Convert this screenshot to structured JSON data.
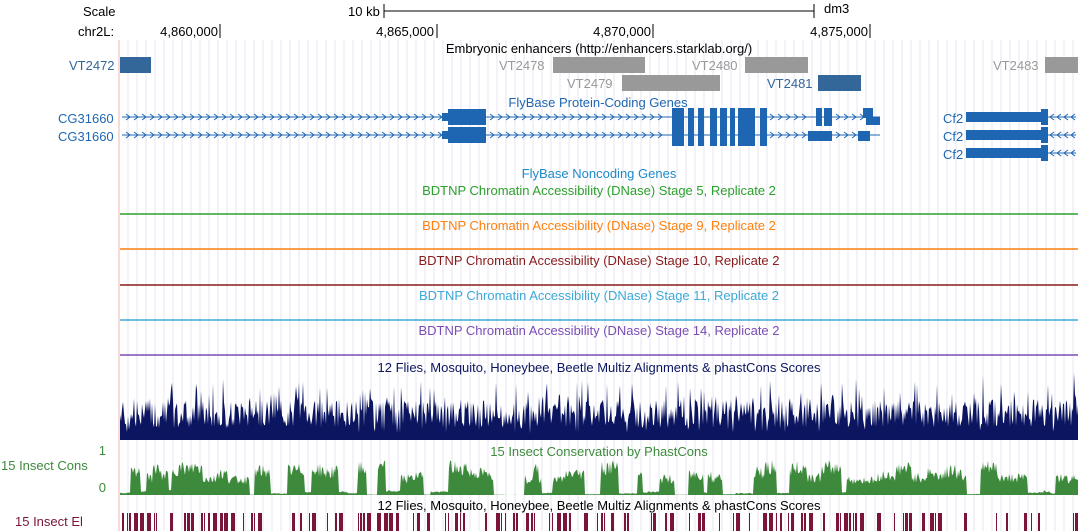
{
  "header": {
    "scale_label": "Scale",
    "scale_bar_text": "10 kb",
    "assembly": "dm3",
    "chrom_label": "chr2L:",
    "ticks": [
      "4,860,000",
      "4,865,000",
      "4,870,000",
      "4,875,000"
    ]
  },
  "enhancers": {
    "title": "Embryonic enhancers (http://enhancers.starklab.org/)",
    "items": [
      "VT2472",
      "VT2478",
      "VT2479",
      "VT2480",
      "VT2481",
      "VT2483"
    ]
  },
  "genes": {
    "title": "FlyBase Protein-Coding Genes",
    "left_labels": [
      "CG31660",
      "CG31660"
    ],
    "right_labels": [
      "Cf2",
      "Cf2",
      "Cf2"
    ]
  },
  "noncoding": {
    "title": "FlyBase Noncoding Genes"
  },
  "dnase_tracks": [
    {
      "title": "BDTNP Chromatin Accessibility (DNase) Stage 5, Replicate 2",
      "color": "#2ca02c"
    },
    {
      "title": "BDTNP Chromatin Accessibility (DNase) Stage 9, Replicate 2",
      "color": "#ff7f0e"
    },
    {
      "title": "BDTNP Chromatin Accessibility (DNase) Stage 10, Replicate 2",
      "color": "#8b1a1a"
    },
    {
      "title": "BDTNP Chromatin Accessibility (DNase) Stage 11, Replicate 2",
      "color": "#3da9d6"
    },
    {
      "title": "BDTNP Chromatin Accessibility (DNase) Stage 14, Replicate 2",
      "color": "#7b4cb5"
    }
  ],
  "conservation": {
    "multiz_title": "12 Flies, Mosquito, Honeybee, Beetle Multiz Alignments & phastCons Scores",
    "phastcons_title": "15 Insect Conservation by PhastCons",
    "phastcons_side_label": "15 Insect Cons",
    "axis_max": "1",
    "axis_min": "0",
    "elements_title": "12 Flies, Mosquito, Honeybee, Beetle Multiz Alignments & phastCons Scores",
    "elements_side_label": "15 Insect El"
  },
  "colors": {
    "gene_blue": "#1f66b2",
    "enhancer_gray": "#999999",
    "enhancer_blue": "#336699",
    "multiz_navy": "#0b1560",
    "phastcons_green": "#3d8a3d",
    "elements_maroon": "#7a1438",
    "guide_line": "#e6e6f0",
    "left_border": "#f2b3b3"
  }
}
